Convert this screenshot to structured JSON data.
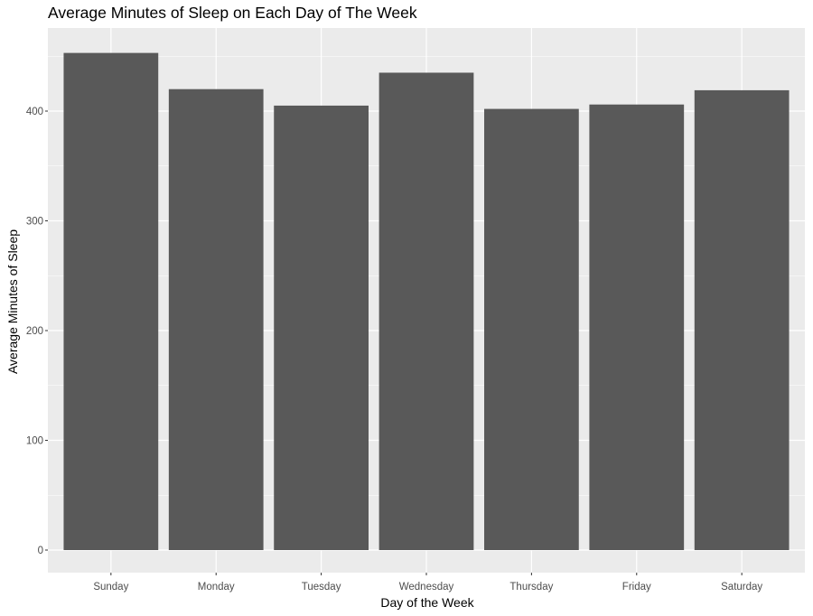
{
  "chart_data": {
    "type": "bar",
    "title": "Average Minutes of Sleep on Each Day of The Week",
    "xlabel": "Day of the Week",
    "ylabel": "Average Minutes of Sleep",
    "categories": [
      "Sunday",
      "Monday",
      "Tuesday",
      "Wednesday",
      "Thursday",
      "Friday",
      "Saturday"
    ],
    "values": [
      453,
      420,
      405,
      435,
      402,
      406,
      419
    ],
    "ylim": [
      0,
      480
    ],
    "yticks": [
      0,
      100,
      200,
      300,
      400
    ],
    "grid": true,
    "colors": {
      "panel_background": "#ebebeb",
      "grid_major": "#ffffff",
      "bar_fill": "#595959",
      "tick_label": "#4d4d4d"
    }
  }
}
